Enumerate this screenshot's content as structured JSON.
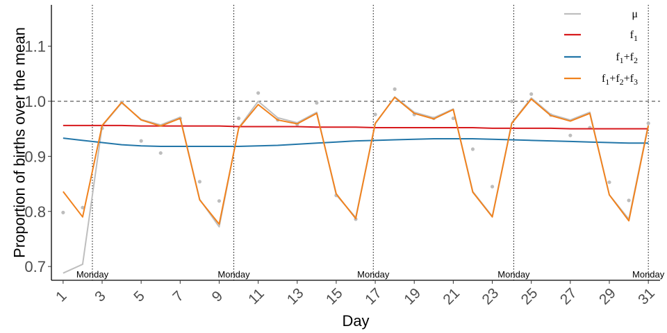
{
  "chart_data": {
    "type": "line",
    "xlabel": "Day",
    "ylabel": "Proportion of births over the mean",
    "xlim": [
      0.4,
      31.6
    ],
    "ylim": [
      0.675,
      1.175
    ],
    "x_ticks": [
      1,
      3,
      5,
      7,
      9,
      11,
      13,
      15,
      17,
      19,
      21,
      23,
      25,
      27,
      29,
      31
    ],
    "y_ticks": [
      0.7,
      0.8,
      0.9,
      1.0,
      1.1
    ],
    "y_tick_labels": [
      "0.7",
      "0.8",
      "0.9",
      "1.0",
      "1.1"
    ],
    "reference_line": {
      "y": 1.0,
      "style": "dashed"
    },
    "monday_lines": {
      "x": [
        2.5,
        9.75,
        16.9,
        24.1,
        31.0
      ],
      "label": "Monday"
    },
    "x": [
      1,
      2,
      3,
      4,
      5,
      6,
      7,
      8,
      9,
      10,
      11,
      12,
      13,
      14,
      15,
      16,
      17,
      18,
      19,
      20,
      21,
      22,
      23,
      24,
      25,
      26,
      27,
      28,
      29,
      30,
      31
    ],
    "points": [
      0.798,
      0.807,
      0.951,
      0.998,
      0.928,
      0.906,
      0.969,
      0.854,
      0.819,
      0.969,
      1.015,
      0.966,
      0.958,
      0.997,
      0.829,
      0.786,
      0.976,
      1.022,
      0.976,
      0.969,
      0.969,
      0.913,
      0.845,
      1.0,
      1.013,
      0.975,
      0.938,
      0.952,
      0.853,
      0.82,
      0.96
    ],
    "series": [
      {
        "name": "μ",
        "color": "#bebebe",
        "values": [
          0.688,
          0.704,
          0.955,
          0.997,
          0.967,
          0.957,
          0.971,
          0.822,
          0.772,
          0.952,
          1.0,
          0.97,
          0.961,
          0.98,
          0.83,
          0.789,
          0.959,
          1.008,
          0.98,
          0.97,
          0.986,
          0.836,
          0.791,
          0.961,
          1.006,
          0.976,
          0.966,
          0.98,
          0.83,
          0.786,
          0.958
        ]
      },
      {
        "name": "f1",
        "color": "#d7191c",
        "values": [
          0.956,
          0.956,
          0.956,
          0.956,
          0.955,
          0.955,
          0.955,
          0.955,
          0.955,
          0.954,
          0.954,
          0.954,
          0.954,
          0.953,
          0.953,
          0.953,
          0.952,
          0.952,
          0.952,
          0.952,
          0.952,
          0.952,
          0.951,
          0.951,
          0.951,
          0.951,
          0.95,
          0.95,
          0.95,
          0.95,
          0.95
        ]
      },
      {
        "name": "f1+f2",
        "color": "#2276a8",
        "values": [
          0.933,
          0.929,
          0.925,
          0.921,
          0.919,
          0.918,
          0.918,
          0.918,
          0.918,
          0.918,
          0.919,
          0.92,
          0.922,
          0.924,
          0.926,
          0.928,
          0.929,
          0.93,
          0.931,
          0.932,
          0.932,
          0.932,
          0.931,
          0.93,
          0.929,
          0.928,
          0.927,
          0.926,
          0.925,
          0.924,
          0.924
        ]
      },
      {
        "name": "f1+f2+f3",
        "color": "#f0821e",
        "values": [
          0.836,
          0.79,
          0.956,
          0.998,
          0.966,
          0.955,
          0.969,
          0.821,
          0.777,
          0.951,
          0.994,
          0.966,
          0.959,
          0.978,
          0.832,
          0.787,
          0.96,
          1.007,
          0.978,
          0.968,
          0.985,
          0.835,
          0.79,
          0.96,
          1.004,
          0.974,
          0.964,
          0.978,
          0.83,
          0.783,
          0.956
        ]
      }
    ],
    "legend": {
      "placement": "top-right",
      "entries": [
        {
          "base": "μ",
          "subs": []
        },
        {
          "base": "f",
          "subs": [
            "1"
          ]
        },
        {
          "base": "f",
          "subs": [
            "1",
            "2"
          ]
        },
        {
          "base": "f",
          "subs": [
            "1",
            "2",
            "3"
          ]
        }
      ]
    },
    "grid": false
  }
}
